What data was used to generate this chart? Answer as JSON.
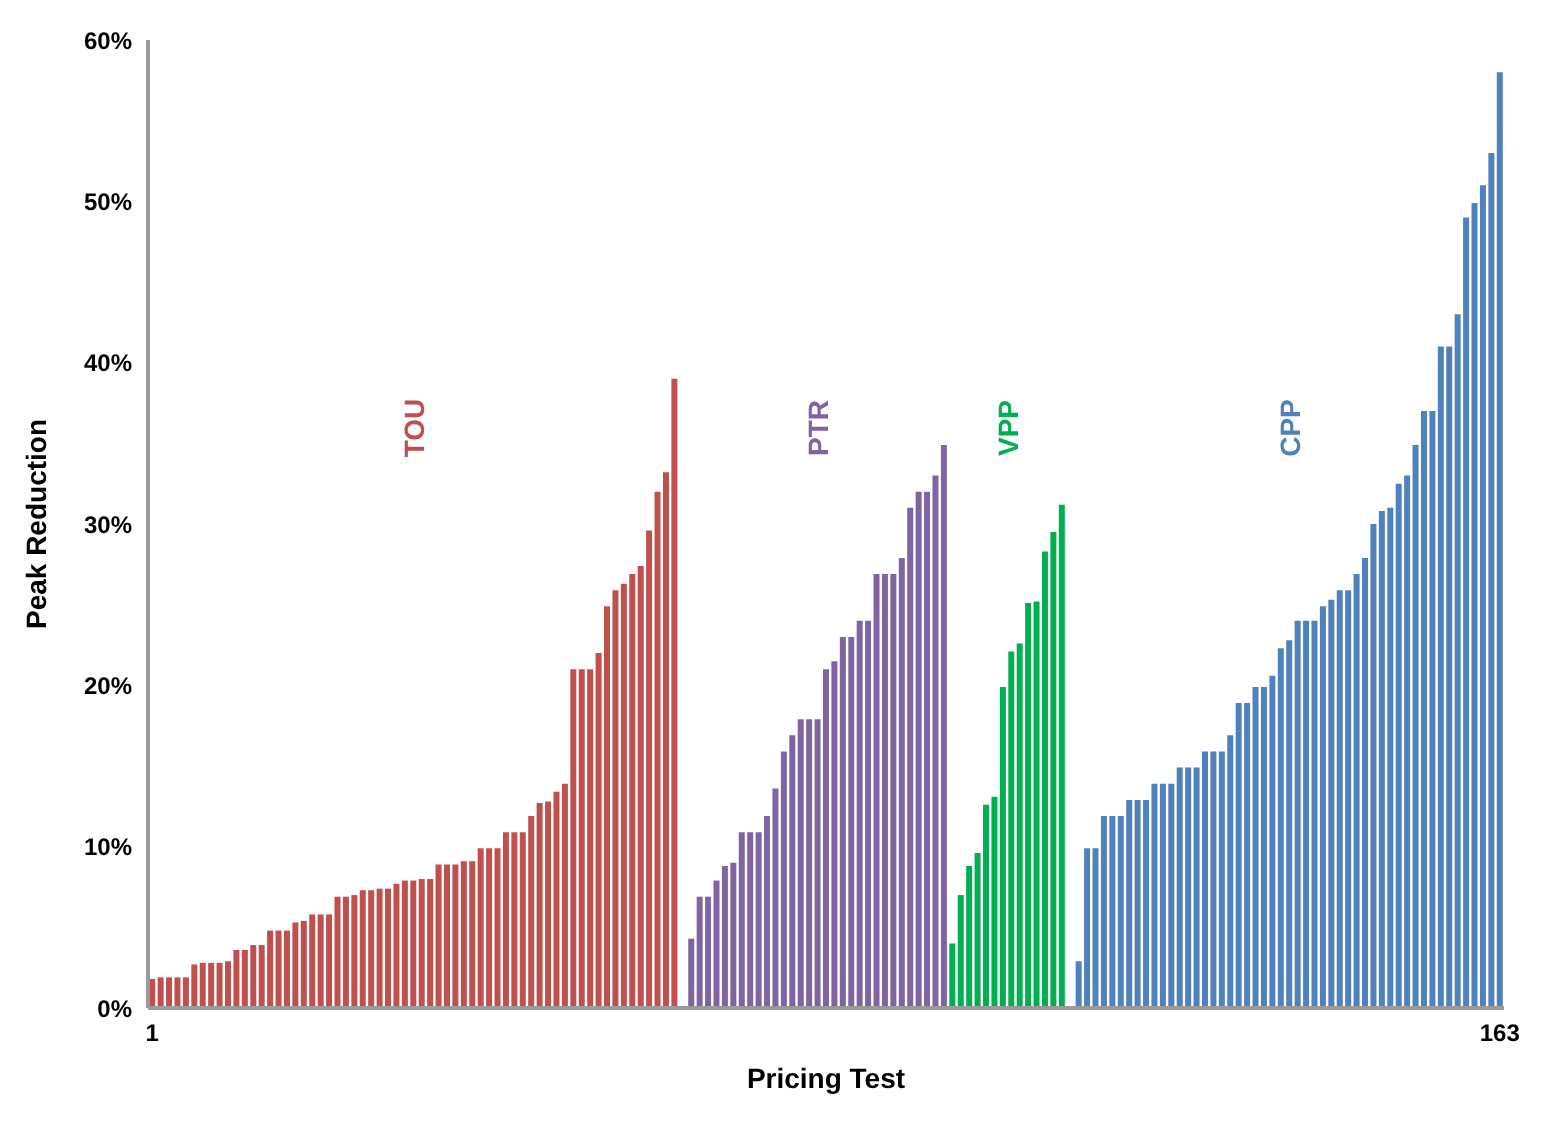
{
  "chart_data": {
    "type": "bar",
    "xlabel": "Pricing Test",
    "ylabel": "Peak Reduction",
    "categories": [
      "1",
      null,
      null,
      null,
      null,
      null,
      null,
      null,
      null,
      null,
      null,
      null,
      null,
      null,
      null,
      null,
      null,
      null,
      null,
      null,
      null,
      null,
      null,
      null,
      null,
      null,
      null,
      null,
      null,
      null,
      null,
      null,
      null,
      null,
      null,
      null,
      null,
      null,
      null,
      null,
      null,
      null,
      null,
      null,
      null,
      null,
      null,
      null,
      null,
      null,
      null,
      null,
      null,
      null,
      null,
      null,
      null,
      null,
      null,
      null,
      null,
      null,
      null,
      null,
      null,
      null,
      null,
      null,
      null,
      null,
      null,
      null,
      null,
      null,
      null,
      null,
      null,
      null,
      null,
      null,
      null,
      null,
      null,
      null,
      null,
      null,
      null,
      null,
      null,
      null,
      null,
      null,
      null,
      null,
      null,
      null,
      null,
      null,
      null,
      null,
      null,
      null,
      null,
      null,
      null,
      null,
      null,
      null,
      null,
      null,
      null,
      null,
      null,
      null,
      null,
      null,
      null,
      null,
      null,
      null,
      null,
      null,
      null,
      null,
      null,
      null,
      null,
      null,
      null,
      null,
      null,
      null,
      null,
      null,
      null,
      null,
      null,
      null,
      null,
      null,
      null,
      null,
      null,
      null,
      null,
      null,
      null,
      null,
      null,
      null,
      null,
      null,
      null,
      null,
      null,
      null,
      null,
      null,
      null,
      null,
      "163"
    ],
    "series": [
      {
        "name": "TOU",
        "color": "#c0504d",
        "values": [
          1.8,
          1.9,
          1.9,
          1.9,
          1.9,
          2.7,
          2.8,
          2.8,
          2.8,
          2.9,
          3.6,
          3.6,
          3.9,
          3.9,
          4.8,
          4.8,
          4.8,
          5.3,
          5.4,
          5.8,
          5.8,
          5.8,
          6.9,
          6.9,
          7.0,
          7.3,
          7.3,
          7.4,
          7.4,
          7.7,
          7.9,
          7.9,
          8.0,
          8.0,
          8.9,
          8.9,
          8.9,
          9.1,
          9.1,
          9.9,
          9.9,
          9.9,
          10.9,
          10.9,
          10.9,
          11.9,
          12.7,
          12.8,
          13.4,
          13.9,
          21.0,
          21.0,
          21.0,
          22.0,
          24.9,
          25.9,
          26.3,
          26.9,
          27.4,
          29.6,
          32.0,
          33.2,
          39.0,
          null,
          null,
          null,
          null,
          null,
          null,
          null,
          null,
          null,
          null,
          null,
          null,
          null,
          null,
          null,
          null,
          null,
          null,
          null,
          null,
          null,
          null,
          null,
          null,
          null,
          null,
          null,
          null,
          null,
          null,
          null,
          null,
          null,
          null,
          null,
          null,
          null,
          null,
          null,
          null,
          null,
          null,
          null,
          null,
          null,
          null,
          null,
          null,
          null,
          null,
          null,
          null,
          null,
          null,
          null,
          null,
          null,
          null,
          null,
          null,
          null,
          null,
          null,
          null,
          null,
          null,
          null,
          null,
          null,
          null,
          null,
          null,
          null,
          null,
          null,
          null,
          null,
          null,
          null,
          null,
          null,
          null,
          null,
          null,
          null,
          null,
          null,
          null,
          null,
          null,
          null,
          null,
          null,
          null,
          null,
          null,
          null,
          null
        ]
      },
      {
        "name": "PTR",
        "color": "#8064a2",
        "values": [
          null,
          null,
          null,
          null,
          null,
          null,
          null,
          null,
          null,
          null,
          null,
          null,
          null,
          null,
          null,
          null,
          null,
          null,
          null,
          null,
          null,
          null,
          null,
          null,
          null,
          null,
          null,
          null,
          null,
          null,
          null,
          null,
          null,
          null,
          null,
          null,
          null,
          null,
          null,
          null,
          null,
          null,
          null,
          null,
          null,
          null,
          null,
          null,
          null,
          null,
          null,
          null,
          null,
          null,
          null,
          null,
          null,
          null,
          null,
          null,
          null,
          null,
          null,
          null,
          4.3,
          6.9,
          6.9,
          7.9,
          8.8,
          9.0,
          10.9,
          10.9,
          10.9,
          11.9,
          13.6,
          15.9,
          16.9,
          17.9,
          17.9,
          17.9,
          21.0,
          21.5,
          23.0,
          23.0,
          24.0,
          24.0,
          26.9,
          26.9,
          26.9,
          27.9,
          31.0,
          32.0,
          32.0,
          33.0,
          34.9,
          null,
          null,
          null,
          null,
          null,
          null,
          null,
          null,
          null,
          null,
          null,
          null,
          null,
          null,
          null,
          null,
          null,
          null,
          null,
          null,
          null,
          null,
          null,
          null,
          null,
          null,
          null,
          null,
          null,
          null,
          null,
          null,
          null,
          null,
          null,
          null,
          null,
          null,
          null,
          null,
          null,
          null,
          null,
          null,
          null,
          null,
          null,
          null,
          null,
          null,
          null,
          null,
          null,
          null,
          null,
          null,
          null,
          null,
          null,
          null,
          null,
          null,
          null,
          null,
          null,
          null
        ]
      },
      {
        "name": "VPP",
        "color": "#00b050",
        "values": [
          null,
          null,
          null,
          null,
          null,
          null,
          null,
          null,
          null,
          null,
          null,
          null,
          null,
          null,
          null,
          null,
          null,
          null,
          null,
          null,
          null,
          null,
          null,
          null,
          null,
          null,
          null,
          null,
          null,
          null,
          null,
          null,
          null,
          null,
          null,
          null,
          null,
          null,
          null,
          null,
          null,
          null,
          null,
          null,
          null,
          null,
          null,
          null,
          null,
          null,
          null,
          null,
          null,
          null,
          null,
          null,
          null,
          null,
          null,
          null,
          null,
          null,
          null,
          null,
          null,
          null,
          null,
          null,
          null,
          null,
          null,
          null,
          null,
          null,
          null,
          null,
          null,
          null,
          null,
          null,
          null,
          null,
          null,
          null,
          null,
          null,
          null,
          null,
          null,
          null,
          null,
          null,
          null,
          null,
          null,
          4.0,
          7.0,
          8.8,
          9.6,
          12.6,
          13.1,
          19.9,
          22.1,
          22.6,
          25.1,
          25.2,
          28.3,
          29.5,
          31.2,
          null,
          null,
          null,
          null,
          null,
          null,
          null,
          null,
          null,
          null,
          null,
          null,
          null,
          null,
          null,
          null,
          null,
          null,
          null,
          null,
          null,
          null,
          null,
          null,
          null,
          null,
          null,
          null,
          null,
          null,
          null,
          null,
          null,
          null,
          null,
          null,
          null,
          null,
          null,
          null,
          null,
          null,
          null,
          null,
          null,
          null,
          null,
          null,
          null,
          null,
          null,
          null
        ]
      },
      {
        "name": "CPP",
        "color": "#4f81bd",
        "values": [
          null,
          null,
          null,
          null,
          null,
          null,
          null,
          null,
          null,
          null,
          null,
          null,
          null,
          null,
          null,
          null,
          null,
          null,
          null,
          null,
          null,
          null,
          null,
          null,
          null,
          null,
          null,
          null,
          null,
          null,
          null,
          null,
          null,
          null,
          null,
          null,
          null,
          null,
          null,
          null,
          null,
          null,
          null,
          null,
          null,
          null,
          null,
          null,
          null,
          null,
          null,
          null,
          null,
          null,
          null,
          null,
          null,
          null,
          null,
          null,
          null,
          null,
          null,
          null,
          null,
          null,
          null,
          null,
          null,
          null,
          null,
          null,
          null,
          null,
          null,
          null,
          null,
          null,
          null,
          null,
          null,
          null,
          null,
          null,
          null,
          null,
          null,
          null,
          null,
          null,
          null,
          null,
          null,
          null,
          null,
          null,
          null,
          null,
          null,
          null,
          null,
          null,
          null,
          null,
          null,
          null,
          null,
          null,
          null,
          null,
          2.9,
          9.9,
          9.9,
          11.9,
          11.9,
          11.9,
          12.9,
          12.9,
          12.9,
          13.9,
          13.9,
          13.9,
          14.9,
          14.9,
          14.9,
          15.9,
          15.9,
          15.9,
          16.9,
          18.9,
          18.9,
          19.9,
          19.9,
          20.6,
          22.3,
          22.8,
          24.0,
          24.0,
          24.0,
          24.9,
          25.3,
          25.9,
          25.9,
          26.9,
          27.9,
          30.0,
          30.8,
          31.0,
          32.5,
          33.0,
          34.9,
          37.0,
          37.0,
          41.0,
          41.0,
          43.0,
          49.0,
          49.9,
          51.0,
          53.0,
          58.0
        ]
      }
    ],
    "ylim": [
      0,
      60
    ],
    "yticks": [
      {
        "value": 0,
        "label": "0%"
      },
      {
        "value": 10,
        "label": "10%"
      },
      {
        "value": 20,
        "label": "20%"
      },
      {
        "value": 30,
        "label": "30%"
      },
      {
        "value": 40,
        "label": "40%"
      },
      {
        "value": 50,
        "label": "50%"
      },
      {
        "value": 60,
        "label": "60%"
      }
    ],
    "grid": false,
    "legend": false
  }
}
